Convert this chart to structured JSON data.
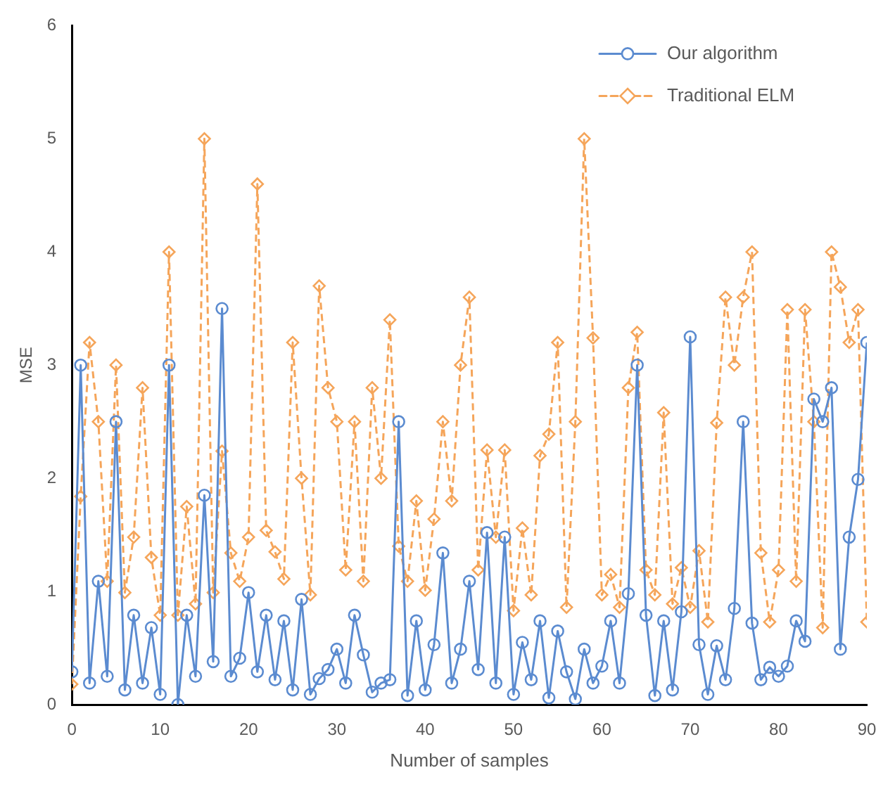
{
  "chart_data": {
    "type": "line",
    "xlabel": "Number of samples",
    "ylabel": "MSE",
    "x": [
      0,
      1,
      2,
      3,
      4,
      5,
      6,
      7,
      8,
      9,
      10,
      11,
      12,
      13,
      14,
      15,
      16,
      17,
      18,
      19,
      20,
      21,
      22,
      23,
      24,
      25,
      26,
      27,
      28,
      29,
      30,
      31,
      32,
      33,
      34,
      35,
      36,
      37,
      38,
      39,
      40,
      41,
      42,
      43,
      44,
      45,
      46,
      47,
      48,
      49,
      50,
      51,
      52,
      53,
      54,
      55,
      56,
      57,
      58,
      59,
      60,
      61,
      62,
      63,
      64,
      65,
      66,
      67,
      68,
      69,
      70,
      71,
      72,
      73,
      74,
      75,
      76,
      77,
      78,
      79,
      80,
      81,
      82,
      83,
      84,
      85,
      86,
      87,
      88,
      89,
      90
    ],
    "series": [
      {
        "name": "Our algorithm",
        "color": "#5b8bd0",
        "marker": "circle",
        "line_style": "solid",
        "values": [
          0.29,
          3.0,
          0.19,
          1.09,
          0.25,
          2.5,
          0.13,
          0.79,
          0.19,
          0.68,
          0.09,
          3.0,
          0.0,
          0.79,
          0.25,
          1.85,
          0.38,
          3.5,
          0.25,
          0.41,
          0.99,
          0.29,
          0.79,
          0.22,
          0.74,
          0.13,
          0.93,
          0.09,
          0.23,
          0.31,
          0.49,
          0.19,
          0.79,
          0.44,
          0.11,
          0.19,
          0.22,
          2.5,
          0.08,
          0.74,
          0.13,
          0.53,
          1.34,
          0.19,
          0.49,
          1.09,
          0.31,
          1.52,
          0.19,
          1.48,
          0.09,
          0.55,
          0.22,
          0.74,
          0.06,
          0.65,
          0.29,
          0.05,
          0.49,
          0.19,
          0.34,
          0.74,
          0.19,
          0.98,
          3.0,
          0.79,
          0.08,
          0.74,
          0.13,
          0.82,
          3.25,
          0.53,
          0.09,
          0.52,
          0.22,
          0.85,
          2.5,
          0.72,
          0.22,
          0.33,
          0.25,
          0.34,
          0.74,
          0.56,
          2.7,
          2.5,
          2.8,
          0.49,
          1.48,
          1.99,
          3.2
        ]
      },
      {
        "name": "Traditional ELM",
        "color": "#f5a55a",
        "marker": "diamond",
        "line_style": "dashed",
        "values": [
          0.18,
          1.84,
          3.2,
          2.5,
          1.09,
          3.0,
          0.99,
          1.48,
          2.8,
          1.3,
          0.79,
          4.0,
          0.79,
          1.75,
          0.89,
          5.0,
          0.99,
          2.24,
          1.34,
          1.09,
          1.48,
          4.6,
          1.54,
          1.35,
          1.11,
          3.2,
          2.0,
          0.97,
          3.7,
          2.8,
          2.5,
          1.19,
          2.5,
          1.09,
          2.8,
          2.0,
          3.4,
          1.4,
          1.09,
          1.8,
          1.01,
          1.64,
          2.5,
          1.8,
          3.0,
          3.6,
          1.19,
          2.25,
          1.48,
          2.25,
          0.83,
          1.56,
          0.97,
          2.2,
          2.39,
          3.2,
          0.86,
          2.5,
          5.0,
          3.24,
          0.97,
          1.15,
          0.86,
          2.8,
          3.29,
          1.19,
          0.97,
          2.58,
          0.89,
          1.21,
          0.86,
          1.36,
          0.73,
          2.49,
          3.6,
          3.0,
          3.6,
          4.0,
          1.34,
          0.73,
          1.19,
          3.49,
          1.09,
          3.49,
          2.5,
          0.68,
          4.0,
          3.69,
          3.2,
          3.49,
          0.73
        ]
      }
    ],
    "xlim": [
      0,
      90
    ],
    "xticks": [
      0,
      10,
      20,
      30,
      40,
      50,
      60,
      70,
      80,
      90
    ],
    "ylim": [
      0,
      6
    ],
    "yticks": [
      0,
      1,
      2,
      3,
      4,
      5,
      6
    ],
    "grid": false,
    "legend": "top right"
  }
}
